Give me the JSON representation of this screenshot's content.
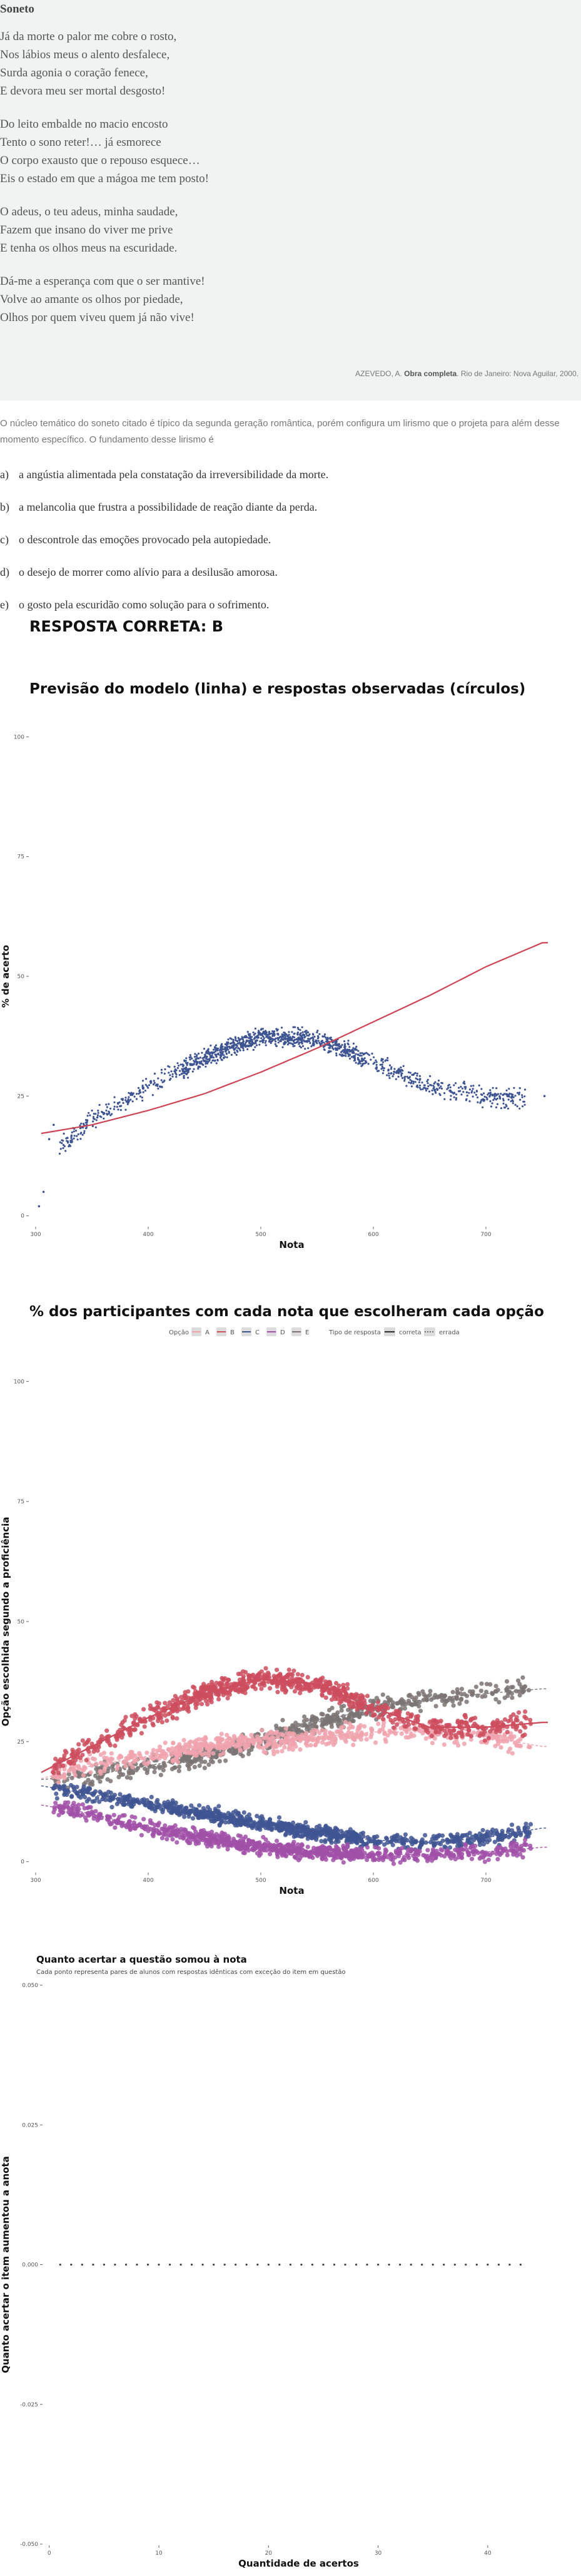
{
  "poem": {
    "title": "Soneto",
    "stanzas": [
      [
        "Já da morte o palor me cobre o rosto,",
        "Nos lábios meus o alento desfalece,",
        "Surda agonia o coração fenece,",
        "E devora meu ser mortal desgosto!"
      ],
      [
        "Do leito embalde no macio encosto",
        "Tento o sono reter!… já esmorece",
        "O corpo exausto que o repouso esquece…",
        "Eis o estado em que a mágoa me tem posto!"
      ],
      [
        "O adeus, o teu adeus, minha saudade,",
        "Fazem que insano do viver me prive",
        "E tenha os olhos meus na escuridade."
      ],
      [
        "Dá-me a esperança com que o ser mantive!",
        "Volve ao amante os olhos por piedade,",
        "Olhos por quem viveu quem já não vive!"
      ]
    ],
    "citation_author": "AZEVEDO, A.",
    "citation_work": "Obra completa",
    "citation_rest": ". Rio de Janeiro: Nova Aguilar, 2000."
  },
  "question": {
    "intro": "O núcleo temático do soneto citado é típico da segunda geração romântica, porém configura um lirismo que o projeta para além desse momento específico. O fundamento desse lirismo é",
    "options": [
      {
        "letter": "a)",
        "text": "a angústia alimentada pela constatação da irreversibilidade da morte."
      },
      {
        "letter": "b)",
        "text": "a melancolia que frustra a possibilidade de reação diante da perda."
      },
      {
        "letter": "c)",
        "text": "o descontrole das emoções provocado pela autopiedade."
      },
      {
        "letter": "d)",
        "text": "o desejo de morrer como alívio para a desilusão amorosa."
      },
      {
        "letter": "e)",
        "text": "o gosto pela escuridão como solução para o sofrimento."
      }
    ],
    "answer_label": "RESPOSTA CORRETA: B"
  },
  "colors": {
    "points_blue": "#3f5592",
    "line_red": "#cc4455",
    "opt_A": "#f0a3ae",
    "opt_B": "#cc4d5e",
    "opt_C": "#3f5592",
    "opt_D": "#a150a8",
    "opt_E": "#7a7473"
  },
  "chart_data": [
    {
      "type": "scatter",
      "title": "Previsão do modelo (linha) e respostas observadas (círculos)",
      "xlabel": "Nota",
      "ylabel": "% de acerto",
      "xticks": [
        300,
        400,
        500,
        600,
        700
      ],
      "yticks": [
        0,
        25,
        50,
        75,
        100
      ],
      "xlim": [
        295,
        760
      ],
      "ylim": [
        -2,
        102
      ],
      "observed_curve": {
        "x": [
          300,
          350,
          400,
          450,
          500,
          550,
          600,
          650,
          700,
          750
        ],
        "y": [
          10,
          20,
          27,
          33,
          37.5,
          37,
          32,
          27,
          25,
          24
        ]
      },
      "model_line": {
        "x": [
          300,
          350,
          400,
          450,
          500,
          550,
          600,
          650,
          700,
          750
        ],
        "y": [
          17,
          19,
          22,
          25.5,
          30,
          35,
          40.5,
          46,
          52,
          57
        ]
      },
      "grid": false
    },
    {
      "type": "scatter",
      "title": "% dos participantes com cada nota que escolheram cada opção",
      "xlabel": "Nota",
      "ylabel": "Opção escolhida segundo a proficiência",
      "xticks": [
        300,
        400,
        500,
        600,
        700
      ],
      "yticks": [
        0,
        25,
        50,
        75,
        100
      ],
      "xlim": [
        295,
        760
      ],
      "ylim": [
        -2,
        102
      ],
      "legend": {
        "option_title": "Opção",
        "options": [
          "A",
          "B",
          "C",
          "D",
          "E"
        ],
        "type_title": "Tipo de resposta",
        "types": [
          "correta",
          "errada"
        ],
        "position": "top"
      },
      "series": [
        {
          "name": "A",
          "x": [
            300,
            350,
            400,
            450,
            500,
            550,
            600,
            650,
            700,
            750
          ],
          "y": [
            17,
            20,
            22,
            24,
            25,
            26,
            27,
            27,
            26,
            24
          ]
        },
        {
          "name": "B",
          "x": [
            300,
            350,
            400,
            450,
            500,
            550,
            600,
            650,
            700,
            750
          ],
          "y": [
            18,
            24,
            30,
            35,
            38,
            37,
            32,
            28,
            28,
            29
          ]
        },
        {
          "name": "C",
          "x": [
            300,
            350,
            400,
            450,
            500,
            550,
            600,
            650,
            700,
            750
          ],
          "y": [
            16,
            14,
            12,
            10,
            8,
            6,
            4.5,
            4,
            5,
            7
          ]
        },
        {
          "name": "D",
          "x": [
            300,
            350,
            400,
            450,
            500,
            550,
            600,
            650,
            700,
            750
          ],
          "y": [
            12,
            10,
            7,
            5,
            3,
            2,
            1.5,
            1.5,
            2,
            3
          ]
        },
        {
          "name": "E",
          "x": [
            300,
            350,
            400,
            450,
            500,
            550,
            600,
            650,
            700,
            750
          ],
          "y": [
            17,
            18,
            20,
            22,
            25,
            29,
            32,
            34,
            35,
            36
          ]
        }
      ],
      "grid": false
    },
    {
      "type": "scatter",
      "title": "Quanto acertar a questão somou à nota",
      "subtitle": "Cada ponto representa pares de alunos com respostas idênticas com exceção do item em questão",
      "xlabel": "Quantidade de acertos",
      "ylabel": "Quanto acertar o item aumentou a anota",
      "xticks": [
        0,
        10,
        20,
        30,
        40
      ],
      "ytick_labels": [
        "-0.050",
        "-0.025",
        "0.000",
        "0.025",
        "0.050"
      ],
      "yticks": [
        -0.05,
        -0.025,
        0,
        0.025,
        0.05
      ],
      "xlim": [
        -0.5,
        46
      ],
      "ylim": [
        -0.05,
        0.05
      ],
      "x": [
        1,
        2,
        3,
        4,
        5,
        6,
        7,
        8,
        9,
        10,
        11,
        12,
        13,
        14,
        15,
        16,
        17,
        18,
        19,
        20,
        21,
        22,
        23,
        24,
        25,
        26,
        27,
        28,
        29,
        30,
        31,
        32,
        33,
        34,
        35,
        36,
        37,
        38,
        39,
        40,
        41,
        42,
        43
      ],
      "y": [
        0,
        0,
        0,
        0,
        0,
        0,
        0,
        0,
        0,
        0,
        0,
        0,
        0,
        0,
        0,
        0,
        0,
        0,
        0,
        0,
        0,
        0,
        0,
        0,
        0,
        0,
        0,
        0,
        0,
        0,
        0,
        0,
        0,
        0,
        0,
        0,
        0,
        0,
        0,
        0,
        0,
        0,
        0
      ],
      "grid": false
    }
  ]
}
